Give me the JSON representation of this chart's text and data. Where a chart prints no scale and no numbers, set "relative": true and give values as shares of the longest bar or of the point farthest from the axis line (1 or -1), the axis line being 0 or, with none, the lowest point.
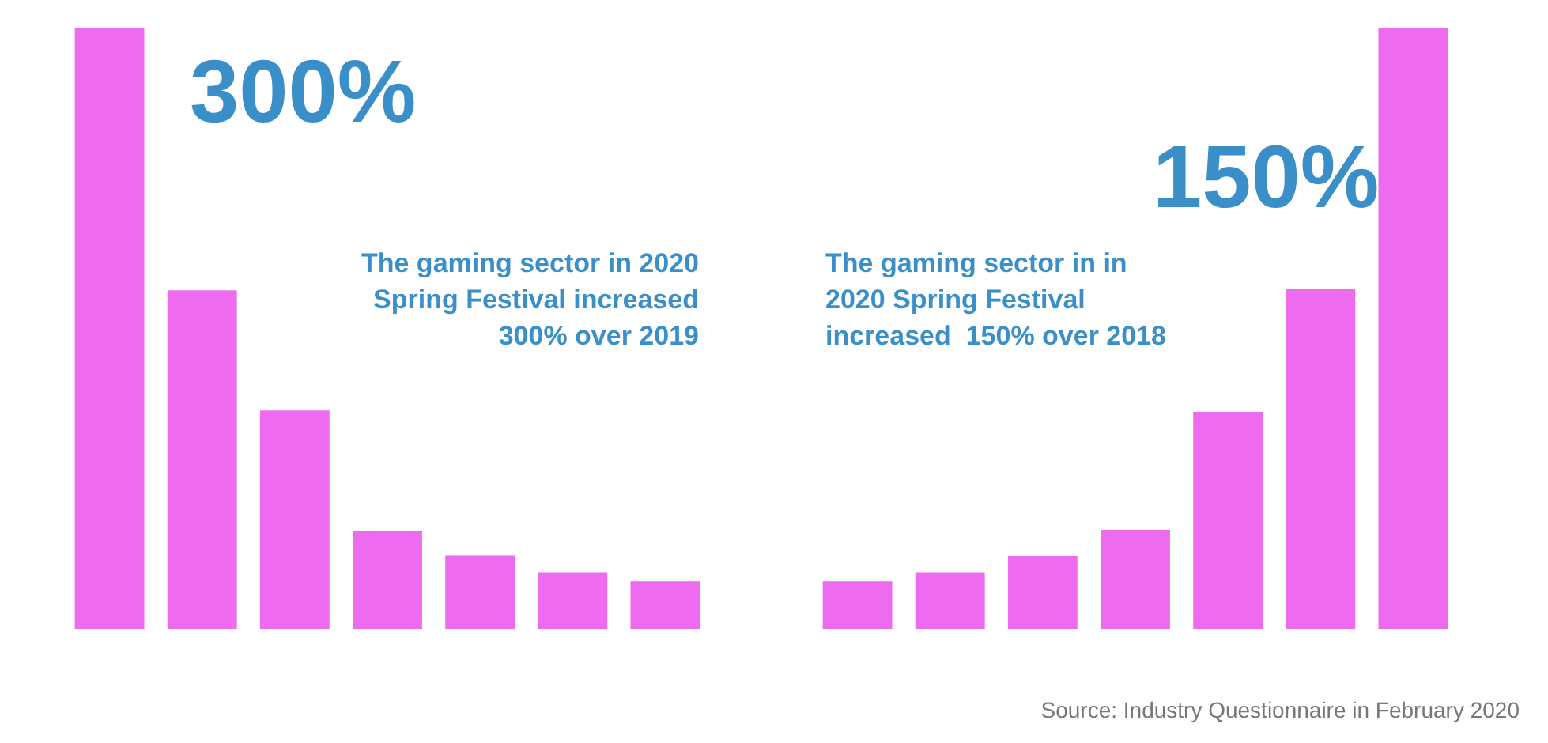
{
  "chart_data": [
    {
      "type": "bar",
      "relative": true,
      "categories": [
        null,
        null,
        null,
        null,
        null,
        null,
        null
      ],
      "values": [
        1,
        0.564,
        0.364,
        0.163,
        0.123,
        0.094,
        0.08
      ],
      "color": "#ee6aee",
      "annotations": [
        "300%",
        "The gaming sector in 2020 Spring Festival increased 300% over 2019"
      ]
    },
    {
      "type": "bar",
      "relative": true,
      "categories": [
        null,
        null,
        null,
        null,
        null,
        null,
        null
      ],
      "values": [
        0.08,
        0.094,
        0.121,
        0.165,
        0.362,
        0.567,
        1
      ],
      "color": "#ee6aee",
      "annotations": [
        "150%",
        "The gaming sector in in 2020 Spring Festival increased  150% over 2018",
        "Source: Industry Questionnaire in February 2020"
      ]
    }
  ]
}
